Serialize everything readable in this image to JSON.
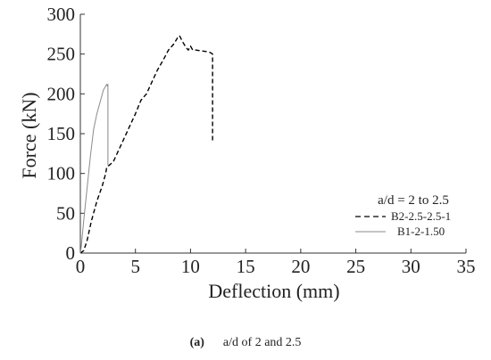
{
  "chart_data": {
    "type": "line",
    "xlabel": "Deflection (mm)",
    "ylabel": "Force (kN)",
    "xlim": [
      0,
      35
    ],
    "ylim": [
      0,
      300
    ],
    "xticks": [
      0,
      5,
      10,
      15,
      20,
      25,
      30,
      35
    ],
    "yticks": [
      0,
      50,
      100,
      150,
      200,
      250,
      300
    ],
    "grid": false,
    "legend": {
      "title": "a/d = 2 to 2.5",
      "placement": "right"
    },
    "series": [
      {
        "name": "B2-2.5-2.5-1",
        "style": "dashed",
        "color": "#000000",
        "points": [
          [
            0,
            0
          ],
          [
            0.3,
            3
          ],
          [
            0.6,
            15
          ],
          [
            1.0,
            40
          ],
          [
            1.5,
            65
          ],
          [
            2.0,
            85
          ],
          [
            2.3,
            100
          ],
          [
            2.4,
            108
          ],
          [
            2.6,
            110
          ],
          [
            3.0,
            115
          ],
          [
            3.5,
            130
          ],
          [
            4.0,
            145
          ],
          [
            4.5,
            160
          ],
          [
            5.0,
            175
          ],
          [
            5.5,
            192
          ],
          [
            6.0,
            200
          ],
          [
            6.5,
            215
          ],
          [
            7.0,
            230
          ],
          [
            7.5,
            242
          ],
          [
            8.0,
            255
          ],
          [
            8.5,
            263
          ],
          [
            8.8,
            270
          ],
          [
            9.0,
            273
          ],
          [
            9.3,
            265
          ],
          [
            9.6,
            258
          ],
          [
            9.8,
            255
          ],
          [
            10.0,
            260
          ],
          [
            10.2,
            255
          ],
          [
            10.5,
            255
          ],
          [
            11.0,
            254
          ],
          [
            11.5,
            253
          ],
          [
            11.8,
            252
          ],
          [
            12.0,
            250
          ],
          [
            12.0,
            140
          ]
        ]
      },
      {
        "name": "B1-2-1.50",
        "style": "solid",
        "color": "#8a8a8a",
        "points": [
          [
            0,
            0
          ],
          [
            0.1,
            10
          ],
          [
            0.3,
            40
          ],
          [
            0.6,
            80
          ],
          [
            0.9,
            120
          ],
          [
            1.2,
            155
          ],
          [
            1.5,
            175
          ],
          [
            1.8,
            190
          ],
          [
            2.1,
            205
          ],
          [
            2.4,
            212
          ],
          [
            2.45,
            210
          ],
          [
            2.5,
            212
          ],
          [
            2.5,
            110
          ]
        ]
      }
    ]
  },
  "caption": {
    "tag": "(a)",
    "text": "a/d of 2 and 2.5"
  }
}
